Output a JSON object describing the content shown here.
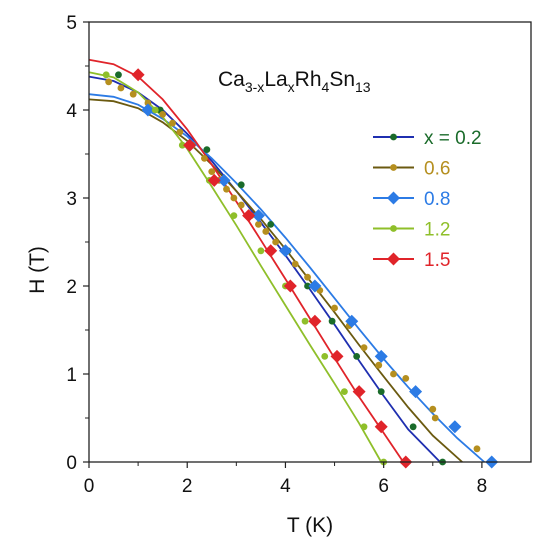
{
  "chart_data": {
    "type": "scatter",
    "title_parts": [
      {
        "text": "Ca",
        "sub": false
      },
      {
        "text": "3-x",
        "sub": true
      },
      {
        "text": "La",
        "sub": false
      },
      {
        "text": "x",
        "sub": true
      },
      {
        "text": "Rh",
        "sub": false
      },
      {
        "text": "4",
        "sub": true
      },
      {
        "text": "Sn",
        "sub": false
      },
      {
        "text": "13",
        "sub": true
      }
    ],
    "xlabel": "T (K)",
    "ylabel": "H (T)",
    "xlim": [
      0,
      9
    ],
    "ylim": [
      0,
      5
    ],
    "xticks": [
      0,
      2,
      4,
      6,
      8
    ],
    "yticks": [
      0,
      1,
      2,
      3,
      4,
      5
    ],
    "grid": false,
    "legend_position": "right",
    "series": [
      {
        "name": "x = 0.2",
        "color": "#1a6b2a",
        "line_color": "#1f2fb0",
        "marker": "circle",
        "points": [
          [
            0.6,
            4.4
          ],
          [
            1.45,
            4.0
          ],
          [
            2.4,
            3.55
          ],
          [
            3.1,
            3.15
          ],
          [
            3.7,
            2.7
          ],
          [
            4.05,
            2.4
          ],
          [
            4.45,
            2.0
          ],
          [
            4.95,
            1.6
          ],
          [
            5.45,
            1.2
          ],
          [
            5.95,
            0.8
          ],
          [
            6.6,
            0.4
          ],
          [
            7.2,
            0.0
          ]
        ],
        "fit": [
          [
            0,
            4.38
          ],
          [
            0.5,
            4.33
          ],
          [
            1,
            4.2
          ],
          [
            1.5,
            4.0
          ],
          [
            2,
            3.73
          ],
          [
            2.5,
            3.42
          ],
          [
            3,
            3.08
          ],
          [
            3.5,
            2.72
          ],
          [
            4,
            2.35
          ],
          [
            4.5,
            1.96
          ],
          [
            5,
            1.56
          ],
          [
            5.5,
            1.15
          ],
          [
            6,
            0.75
          ],
          [
            6.5,
            0.37
          ],
          [
            7.15,
            0.0
          ]
        ]
      },
      {
        "name": "0.6",
        "color": "#b58f1f",
        "line_color": "#6b5a10",
        "marker": "circle",
        "points": [
          [
            0.4,
            4.32
          ],
          [
            0.65,
            4.25
          ],
          [
            0.9,
            4.18
          ],
          [
            1.2,
            4.08
          ],
          [
            1.5,
            3.95
          ],
          [
            1.7,
            3.85
          ],
          [
            1.85,
            3.75
          ],
          [
            2.1,
            3.6
          ],
          [
            2.35,
            3.45
          ],
          [
            2.5,
            3.3
          ],
          [
            2.65,
            3.2
          ],
          [
            2.8,
            3.1
          ],
          [
            2.95,
            3.0
          ],
          [
            3.1,
            2.92
          ],
          [
            3.3,
            2.8
          ],
          [
            3.45,
            2.7
          ],
          [
            3.6,
            2.62
          ],
          [
            3.8,
            2.5
          ],
          [
            4.0,
            2.4
          ],
          [
            4.2,
            2.25
          ],
          [
            4.45,
            2.1
          ],
          [
            4.7,
            1.95
          ],
          [
            5.0,
            1.75
          ],
          [
            5.3,
            1.55
          ],
          [
            5.6,
            1.3
          ],
          [
            5.9,
            1.1
          ],
          [
            6.2,
            1.0
          ],
          [
            6.45,
            0.95
          ],
          [
            7.0,
            0.6
          ],
          [
            7.05,
            0.5
          ],
          [
            7.9,
            0.15
          ]
        ],
        "fit": [
          [
            0,
            4.12
          ],
          [
            0.5,
            4.1
          ],
          [
            1,
            4.02
          ],
          [
            1.5,
            3.86
          ],
          [
            2,
            3.65
          ],
          [
            2.5,
            3.38
          ],
          [
            3,
            3.08
          ],
          [
            3.5,
            2.76
          ],
          [
            4,
            2.42
          ],
          [
            4.5,
            2.06
          ],
          [
            5,
            1.7
          ],
          [
            5.5,
            1.33
          ],
          [
            6,
            0.97
          ],
          [
            6.5,
            0.62
          ],
          [
            7,
            0.3
          ],
          [
            7.6,
            0.0
          ]
        ]
      },
      {
        "name": "0.8",
        "color": "#2c7be5",
        "line_color": "#2c7be5",
        "marker": "diamond",
        "points": [
          [
            1.2,
            4.0
          ],
          [
            2.05,
            3.6
          ],
          [
            2.75,
            3.2
          ],
          [
            3.45,
            2.8
          ],
          [
            4.0,
            2.4
          ],
          [
            4.6,
            2.0
          ],
          [
            5.35,
            1.6
          ],
          [
            5.95,
            1.2
          ],
          [
            6.65,
            0.8
          ],
          [
            7.45,
            0.4
          ],
          [
            8.2,
            0.0
          ]
        ],
        "fit": [
          [
            0,
            4.18
          ],
          [
            0.5,
            4.15
          ],
          [
            1,
            4.06
          ],
          [
            1.5,
            3.9
          ],
          [
            2,
            3.7
          ],
          [
            2.5,
            3.45
          ],
          [
            3,
            3.17
          ],
          [
            3.5,
            2.87
          ],
          [
            4,
            2.55
          ],
          [
            4.5,
            2.21
          ],
          [
            5,
            1.86
          ],
          [
            5.5,
            1.51
          ],
          [
            6,
            1.17
          ],
          [
            6.5,
            0.85
          ],
          [
            7,
            0.55
          ],
          [
            7.5,
            0.27
          ],
          [
            8.05,
            0.0
          ]
        ]
      },
      {
        "name": "1.2",
        "color": "#8fbf2a",
        "line_color": "#8fbf2a",
        "marker": "circle",
        "points": [
          [
            0.35,
            4.4
          ],
          [
            1.35,
            4.0
          ],
          [
            1.9,
            3.6
          ],
          [
            2.45,
            3.2
          ],
          [
            2.95,
            2.8
          ],
          [
            3.5,
            2.4
          ],
          [
            4.0,
            2.0
          ],
          [
            4.4,
            1.6
          ],
          [
            4.8,
            1.2
          ],
          [
            5.2,
            0.8
          ],
          [
            5.6,
            0.4
          ],
          [
            6.0,
            0.0
          ]
        ],
        "fit": [
          [
            0,
            4.43
          ],
          [
            0.5,
            4.37
          ],
          [
            1,
            4.2
          ],
          [
            1.5,
            3.92
          ],
          [
            2,
            3.56
          ],
          [
            2.5,
            3.13
          ],
          [
            3,
            2.69
          ],
          [
            3.5,
            2.23
          ],
          [
            4,
            1.78
          ],
          [
            4.5,
            1.33
          ],
          [
            5,
            0.89
          ],
          [
            5.5,
            0.44
          ],
          [
            5.95,
            0.0
          ]
        ]
      },
      {
        "name": "1.5",
        "color": "#e0242a",
        "line_color": "#e0242a",
        "marker": "diamond",
        "points": [
          [
            1.0,
            4.4
          ],
          [
            2.05,
            3.6
          ],
          [
            2.55,
            3.2
          ],
          [
            3.25,
            2.8
          ],
          [
            3.7,
            2.4
          ],
          [
            4.1,
            2.0
          ],
          [
            4.6,
            1.6
          ],
          [
            5.05,
            1.2
          ],
          [
            5.5,
            0.8
          ],
          [
            5.95,
            0.4
          ],
          [
            6.45,
            0.0
          ]
        ],
        "fit": [
          [
            0,
            4.57
          ],
          [
            0.5,
            4.52
          ],
          [
            1,
            4.38
          ],
          [
            1.5,
            4.12
          ],
          [
            2,
            3.78
          ],
          [
            2.5,
            3.38
          ],
          [
            3,
            2.96
          ],
          [
            3.5,
            2.52
          ],
          [
            4,
            2.08
          ],
          [
            4.5,
            1.63
          ],
          [
            5,
            1.18
          ],
          [
            5.5,
            0.74
          ],
          [
            6,
            0.33
          ],
          [
            6.4,
            0.0
          ]
        ]
      }
    ]
  }
}
